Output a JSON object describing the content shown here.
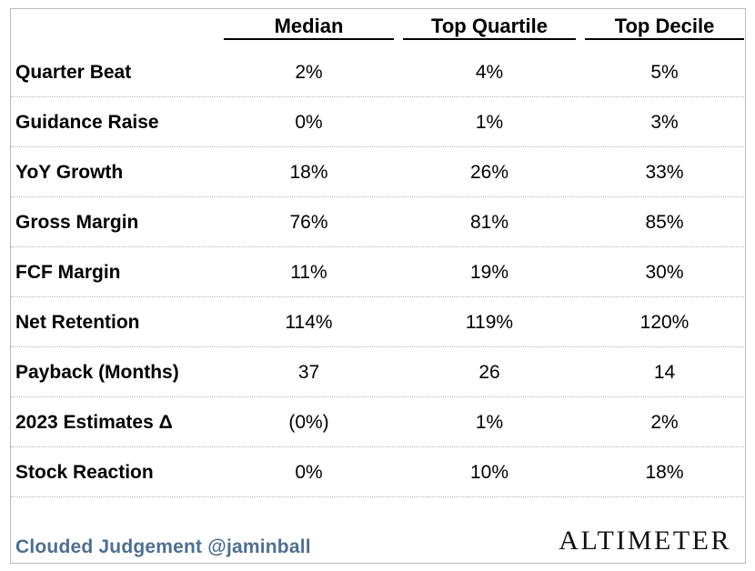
{
  "headers": [
    "Median",
    "Top Quartile",
    "Top Decile"
  ],
  "rows": [
    {
      "label": "Quarter Beat",
      "median": "2%",
      "top_quartile": "4%",
      "top_decile": "5%"
    },
    {
      "label": "Guidance Raise",
      "median": "0%",
      "top_quartile": "1%",
      "top_decile": "3%"
    },
    {
      "label": "YoY Growth",
      "median": "18%",
      "top_quartile": "26%",
      "top_decile": "33%"
    },
    {
      "label": "Gross Margin",
      "median": "76%",
      "top_quartile": "81%",
      "top_decile": "85%"
    },
    {
      "label": "FCF Margin",
      "median": "11%",
      "top_quartile": "19%",
      "top_decile": "30%"
    },
    {
      "label": "Net Retention",
      "median": "114%",
      "top_quartile": "119%",
      "top_decile": "120%"
    },
    {
      "label": "Payback (Months)",
      "median": "37",
      "top_quartile": "26",
      "top_decile": "14"
    },
    {
      "label": "2023 Estimates Δ",
      "median": "(0%)",
      "top_quartile": "1%",
      "top_decile": "2%"
    },
    {
      "label": "Stock Reaction",
      "median": "0%",
      "top_quartile": "10%",
      "top_decile": "18%"
    }
  ],
  "footer": {
    "credit": "Clouded Judgement @jaminball",
    "brand": "ALTIMETER",
    "credit_color": "#4f6f8f"
  }
}
